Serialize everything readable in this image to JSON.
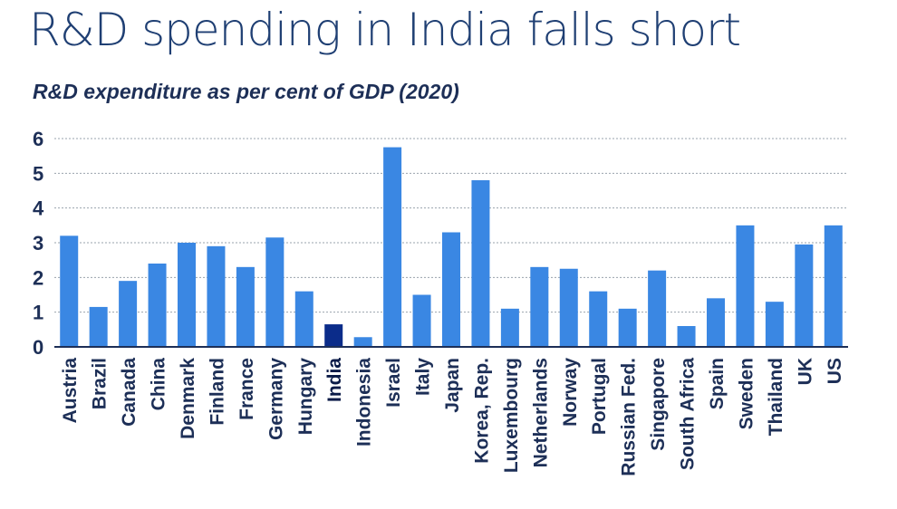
{
  "chart_data": {
    "type": "bar",
    "title": "R&D spending in India falls short",
    "subtitle": "R&D expenditure as per cent of GDP (2020)",
    "xlabel": "",
    "ylabel": "",
    "ylim": [
      0,
      6
    ],
    "yticks": [
      "0",
      "1",
      "2",
      "3",
      "4",
      "5",
      "6"
    ],
    "grid": true,
    "categories": [
      "Austria",
      "Brazil",
      "Canada",
      "China",
      "Denmark",
      "Finland",
      "France",
      "Germany",
      "Hungary",
      "India",
      "Indonesia",
      "Israel",
      "Italy",
      "Japan",
      "Korea, Rep.",
      "Luxembourg",
      "Netherlands",
      "Norway",
      "Portugal",
      "Russian Fed.",
      "Singapore",
      "South Africa",
      "Spain",
      "Sweden",
      "Thailand",
      "UK",
      "US"
    ],
    "values": [
      3.2,
      1.15,
      1.9,
      2.4,
      3.0,
      2.9,
      2.3,
      3.15,
      1.6,
      0.65,
      0.28,
      5.75,
      1.5,
      3.3,
      4.8,
      1.1,
      2.3,
      2.25,
      1.6,
      1.1,
      2.2,
      0.6,
      1.4,
      3.5,
      1.3,
      2.95,
      3.5
    ],
    "highlight": "India",
    "colors": {
      "bar": "#3a87e3",
      "highlight_bar": "#0b2c8a",
      "grid": "#9aa3ad",
      "axis": "#1d2f57",
      "text": "#1d2f57",
      "title": "#1f3f73"
    }
  }
}
